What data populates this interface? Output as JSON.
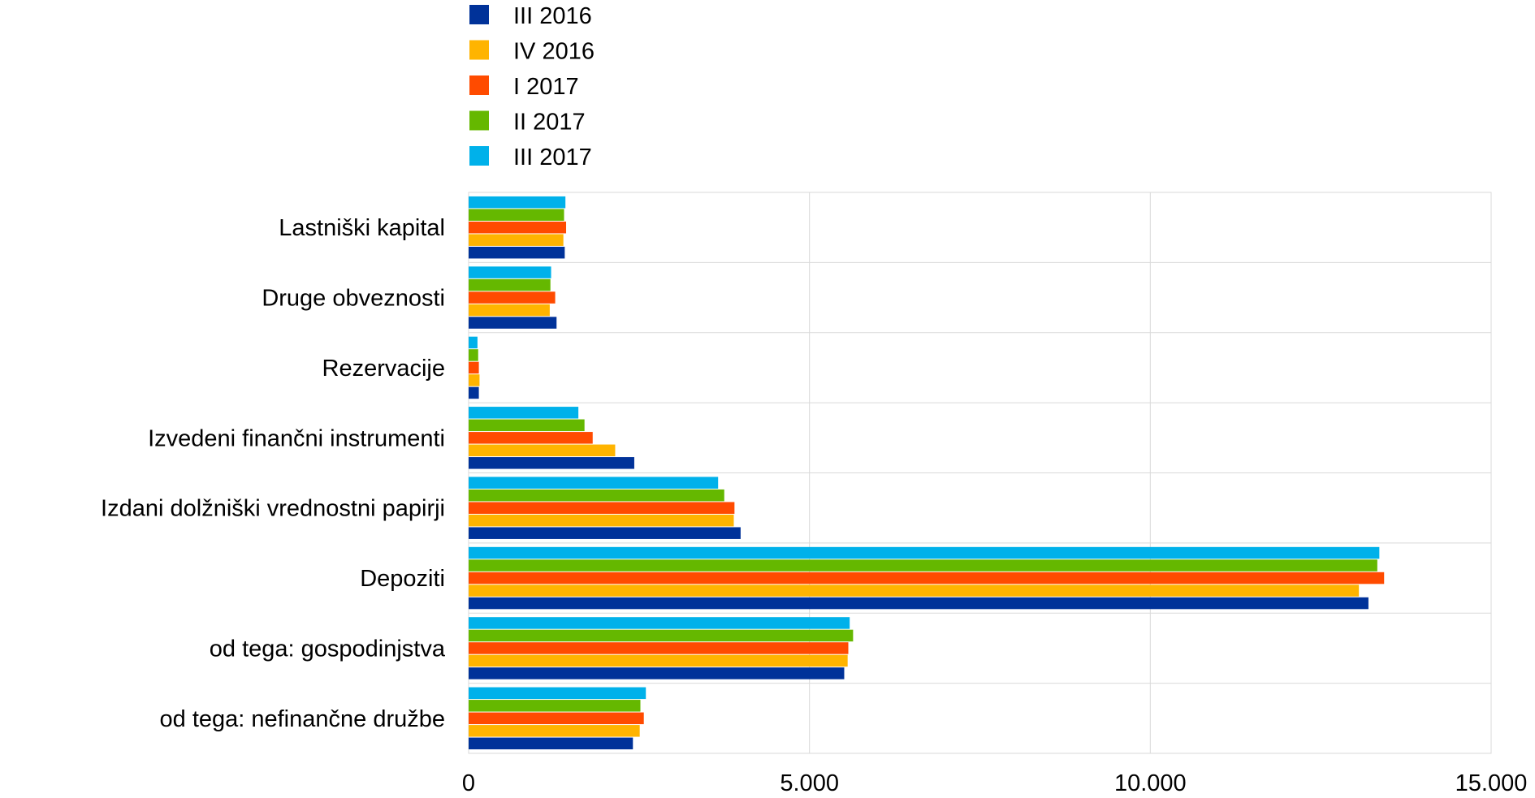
{
  "chart_data": {
    "type": "bar",
    "orientation": "horizontal",
    "categories": [
      "Lastniški kapital",
      "Druge obveznosti",
      "Rezervacije",
      "Izvedeni finančni instrumenti",
      "Izdani dolžniški vrednostni papirji",
      "Depoziti",
      "od tega: gospodinjstva",
      "od tega: nefinančne družbe"
    ],
    "series": [
      {
        "name": "III 2016",
        "color": "#003299",
        "values": [
          1410,
          1290,
          150,
          2430,
          3990,
          13200,
          5510,
          2410
        ]
      },
      {
        "name": "IV 2016",
        "color": "#FFB400",
        "values": [
          1390,
          1190,
          160,
          2150,
          3890,
          13060,
          5560,
          2510
        ]
      },
      {
        "name": "I 2017",
        "color": "#FF4B00",
        "values": [
          1430,
          1270,
          150,
          1820,
          3900,
          13430,
          5570,
          2570
        ]
      },
      {
        "name": "II 2017",
        "color": "#65B800",
        "values": [
          1400,
          1200,
          140,
          1700,
          3750,
          13330,
          5640,
          2520
        ]
      },
      {
        "name": "III 2017",
        "color": "#00B1EA",
        "values": [
          1420,
          1210,
          130,
          1610,
          3660,
          13360,
          5590,
          2600
        ]
      }
    ],
    "xlim": [
      0,
      15000
    ],
    "xticks": [
      0,
      5000,
      10000,
      15000
    ],
    "xtick_labels": [
      "0",
      "5.000",
      "10.000",
      "15.000"
    ],
    "grid": true,
    "legend_position": "top"
  }
}
